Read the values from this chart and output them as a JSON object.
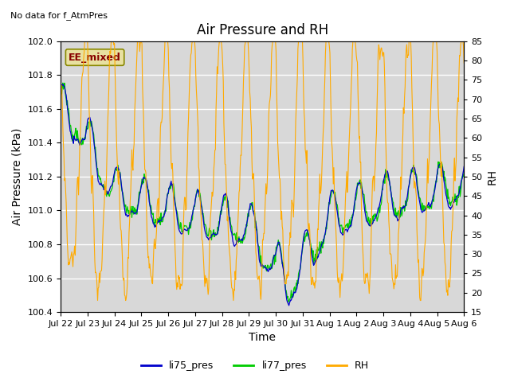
{
  "title": "Air Pressure and RH",
  "subtitle": "No data for f_AtmPres",
  "xlabel": "Time",
  "ylabel_left": "Air Pressure (kPa)",
  "ylabel_right": "RH",
  "ylim_left": [
    100.4,
    102.0
  ],
  "ylim_right": [
    15,
    85
  ],
  "yticks_left": [
    100.4,
    100.6,
    100.8,
    101.0,
    101.2,
    101.4,
    101.6,
    101.8,
    102.0
  ],
  "yticks_right": [
    15,
    20,
    25,
    30,
    35,
    40,
    45,
    50,
    55,
    60,
    65,
    70,
    75,
    80,
    85
  ],
  "color_li75": "#0000cc",
  "color_li77": "#00cc00",
  "color_rh": "#ffaa00",
  "bg_color": "#d8d8d8",
  "annotation_text": "EE_mixed",
  "annotation_bg": "#e8e0a0",
  "annotation_border": "#888800",
  "annotation_text_color": "#880000",
  "x_tick_labels": [
    "Jul 22",
    "Jul 23",
    "Jul 24",
    "Jul 25",
    "Jul 26",
    "Jul 27",
    "Jul 28",
    "Jul 29",
    "Jul 30",
    "Jul 31",
    "Aug 1",
    "Aug 2",
    "Aug 3",
    "Aug 4",
    "Aug 5",
    "Aug 6"
  ],
  "legend_labels": [
    "li75_pres",
    "li77_pres",
    "RH"
  ],
  "title_fontsize": 12,
  "axis_label_fontsize": 10,
  "tick_fontsize": 8,
  "legend_fontsize": 9,
  "annotation_fontsize": 9
}
